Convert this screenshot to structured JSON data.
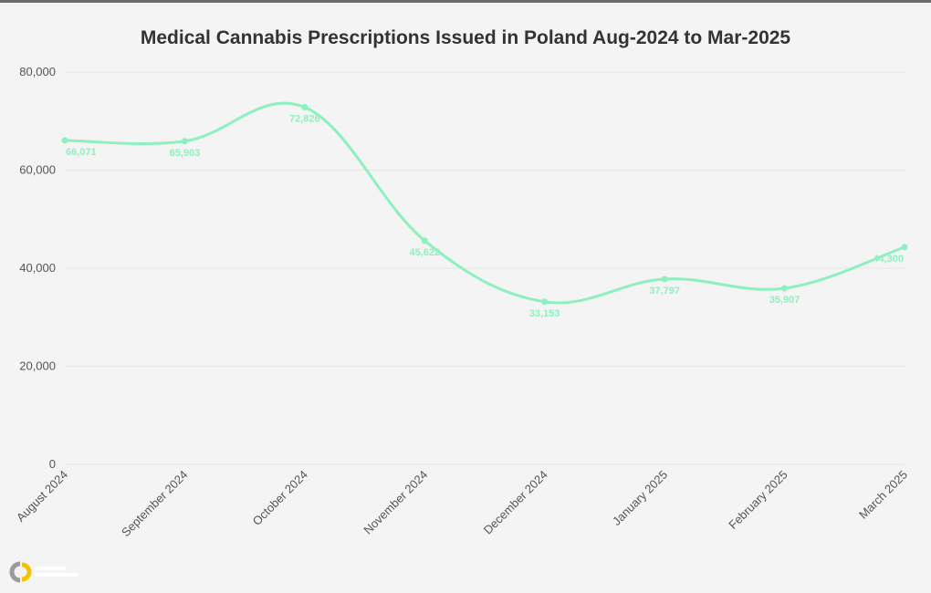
{
  "chart_data": {
    "type": "line",
    "title": "Medical Cannabis Prescriptions Issued in Poland Aug-2024 to Mar-2025",
    "xlabel": "",
    "ylabel": "",
    "categories": [
      "August 2024",
      "September 2024",
      "October 2024",
      "November 2024",
      "December 2024",
      "January 2025",
      "February 2025",
      "March 2025"
    ],
    "series": [
      {
        "values": [
          66071,
          65903,
          72826,
          45622,
          33153,
          37797,
          35907,
          44300
        ],
        "labels": [
          "66,071",
          "65,903",
          "72,826",
          "45,622",
          "33,153",
          "37,797",
          "35,907",
          "44,300"
        ]
      }
    ],
    "ylim": [
      0,
      80000
    ],
    "yticks": [
      "0",
      "20,000",
      "40,000",
      "60,000",
      "80,000"
    ],
    "grid": true,
    "legend": "none",
    "smooth": true
  },
  "colors": {
    "line": "#8ef0bf",
    "label": "#8ef0bf",
    "grid": "#e6e6e6",
    "background": "#f4f4f4",
    "logo_accent": "#f5c400"
  },
  "logo": {
    "icon": "brand-logo-icon"
  }
}
